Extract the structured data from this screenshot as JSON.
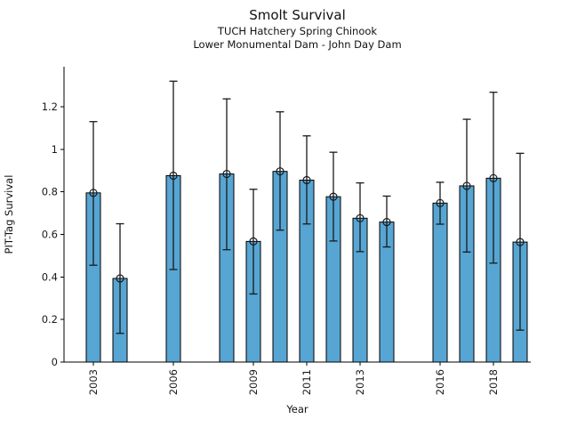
{
  "chart_data": {
    "type": "bar",
    "title": "Smolt Survival",
    "subtitle1": "TUCH Hatchery Spring Chinook",
    "subtitle2": "Lower Monumental Dam - John Day Dam",
    "xlabel": "Year",
    "ylabel": "PIT-Tag Survival",
    "series": [
      {
        "name": "PIT-Tag Survival",
        "x": [
          2003,
          2004,
          2006,
          2008,
          2009,
          2010,
          2011,
          2012,
          2013,
          2014,
          2016,
          2017,
          2018,
          2019
        ],
        "values": [
          0.795,
          0.393,
          0.876,
          0.884,
          0.567,
          0.896,
          0.855,
          0.777,
          0.676,
          0.658,
          0.747,
          0.828,
          0.864,
          0.564
        ],
        "error_low": [
          0.455,
          0.135,
          0.435,
          0.528,
          0.32,
          0.62,
          0.649,
          0.569,
          0.519,
          0.541,
          0.648,
          0.517,
          0.465,
          0.15
        ],
        "error_high": [
          1.13,
          0.65,
          1.32,
          1.237,
          0.812,
          1.176,
          1.063,
          0.986,
          0.842,
          0.78,
          0.845,
          1.141,
          1.268,
          0.981
        ]
      }
    ],
    "x_ticks": [
      2003,
      2006,
      2009,
      2011,
      2013,
      2016,
      2018
    ],
    "y_ticks": [
      0,
      0.2,
      0.4,
      0.6,
      0.8,
      1,
      1.2
    ],
    "y_tick_labels": [
      "0",
      "0.2",
      "0.4",
      "0.6",
      "0.8",
      "1",
      "1.2"
    ],
    "xlim": [
      2001.9,
      2019.4
    ],
    "ylim": [
      0,
      1.388
    ],
    "grid": false,
    "legend": "none",
    "marker": "open-circle",
    "bar_color": "#57a5d3",
    "edge_color": "#000000",
    "errorbar_color": "#1a1a1a"
  }
}
